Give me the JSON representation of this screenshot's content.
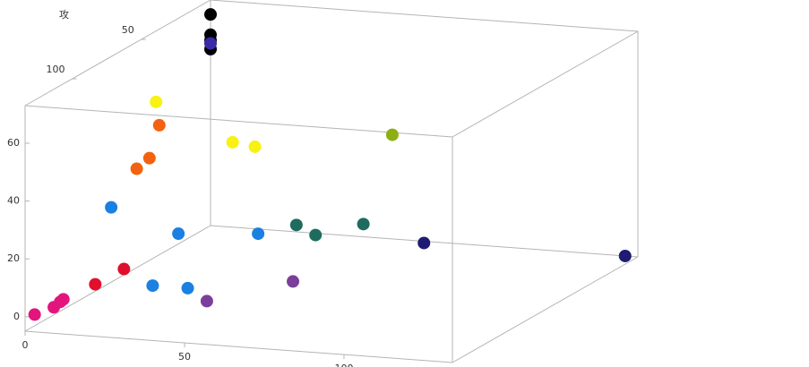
{
  "chart_data": {
    "type": "scatter3d",
    "y_label": "攻",
    "xlim": [
      0,
      134
    ],
    "ylim": [
      0,
      134
    ],
    "zlim": [
      -5,
      73
    ],
    "xticks": [
      0,
      50,
      100
    ],
    "yticks": [
      0,
      50,
      100
    ],
    "zticks": [
      0,
      20,
      40,
      60
    ],
    "series": [
      {
        "color": "#e3157d",
        "x": [
          3,
          9,
          11,
          12
        ],
        "y": [
          134,
          134,
          134,
          134
        ],
        "z": [
          1,
          4,
          6,
          7
        ]
      },
      {
        "color": "#e0102c",
        "x": [
          22,
          31
        ],
        "y": [
          134,
          134
        ],
        "z": [
          13,
          19
        ]
      },
      {
        "color": "#1a80e2",
        "x": [
          27,
          40,
          51,
          19,
          44
        ],
        "y": [
          134,
          134,
          134,
          67,
          67
        ],
        "z": [
          40,
          14,
          14,
          12,
          14
        ]
      },
      {
        "color": "#f2620f",
        "x": [
          35,
          39,
          13
        ],
        "y": [
          134,
          134,
          67
        ],
        "z": [
          54,
          58,
          49
        ]
      },
      {
        "color": "#f7f214",
        "x": [
          12,
          36,
          43
        ],
        "y": [
          67,
          67,
          67
        ],
        "z": [
          57,
          45,
          44
        ]
      },
      {
        "color": "#7b3f9b",
        "x": [
          57,
          84
        ],
        "y": [
          134,
          134
        ],
        "z": [
          10,
          19
        ]
      },
      {
        "color": "#1f6b5e",
        "x": [
          56,
          62,
          77
        ],
        "y": [
          67,
          67,
          67
        ],
        "z": [
          18,
          15,
          20
        ]
      },
      {
        "color": "#201b72",
        "x": [
          96,
          130
        ],
        "y": [
          67,
          0
        ],
        "z": [
          15,
          -5
        ]
      },
      {
        "color": "#8cb012",
        "x": [
          57
        ],
        "y": [
          0
        ],
        "z": [
          31
        ]
      },
      {
        "color": "#000000",
        "x": [
          0,
          0,
          0,
          0
        ],
        "y": [
          0,
          0,
          0,
          0
        ],
        "z": [
          68,
          61,
          59,
          56
        ]
      },
      {
        "color": "#3a2aa8",
        "x": [
          0
        ],
        "y": [
          0
        ],
        "z": [
          58
        ]
      }
    ]
  }
}
